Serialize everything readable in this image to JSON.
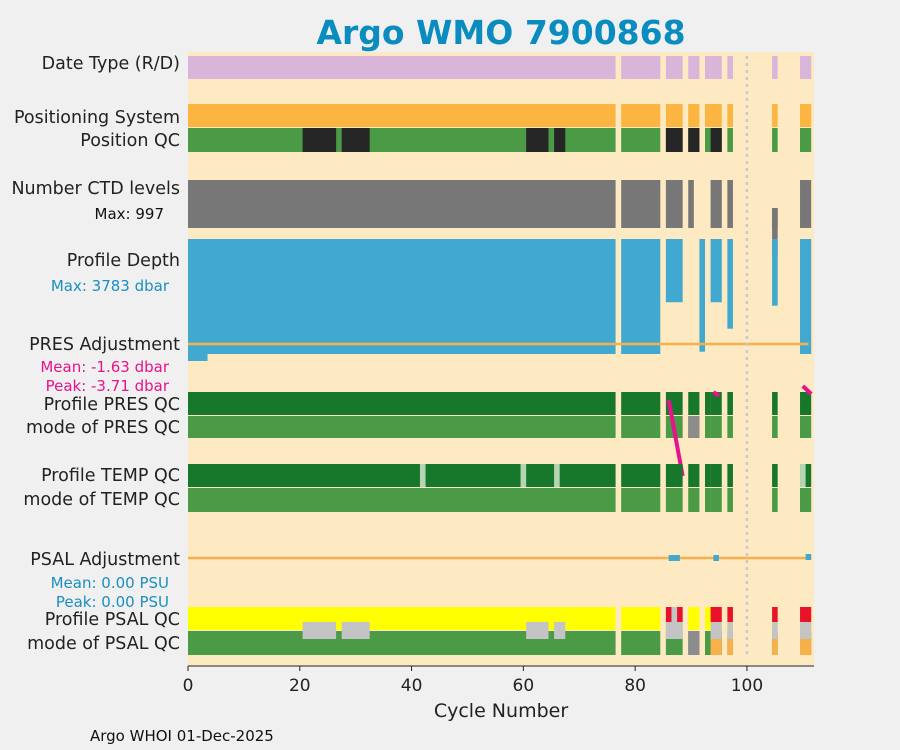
{
  "chart_data": {
    "type": "timeline",
    "title": "Argo WMO 7900868",
    "xlabel": "Cycle Number",
    "xlim": [
      0,
      112
    ],
    "xticks": [
      0,
      20,
      40,
      60,
      80,
      100
    ],
    "footer": "Argo WHOI 01-Dec-2025",
    "row_labels": {
      "date_type": "Date Type (R/D)",
      "positioning_system": "Positioning System",
      "position_qc": "Position QC",
      "n_ctd_levels": "Number CTD levels",
      "profile_depth": "Profile Depth",
      "pres_adjustment": "PRES Adjustment",
      "profile_pres_qc": "Profile PRES QC",
      "mode_pres_qc": "mode of PRES QC",
      "profile_temp_qc": "Profile TEMP QC",
      "mode_temp_qc": "mode of TEMP QC",
      "psal_adjustment": "PSAL Adjustment",
      "profile_psal_qc": "Profile PSAL QC",
      "mode_psal_qc": "mode of PSAL QC"
    },
    "annotations": {
      "ctd_max": "Max: 997",
      "depth_max": "Max: 3783 dbar",
      "pres_mean": "Mean: -1.63 dbar",
      "pres_peak": "Peak: -3.71 dbar",
      "psal_mean": "Mean: 0.00 PSU",
      "psal_peak": "Peak: 0.00 PSU"
    },
    "colors": {
      "background": "#fde9c2",
      "date_type": "#d9b6d9",
      "positioning": "#fbb540",
      "qc_good": "#4a9a46",
      "qc_profile_good": "#17772b",
      "qc_bad": "#262626",
      "ctd": "#777777",
      "depth": "#41a9d0",
      "adjustment_line": "#f7b04a",
      "pink": "#e8128c",
      "grey": "#c4c4c4",
      "mode_grey": "#8c8c8c",
      "yellow": "#ffff00",
      "red": "#e8132a",
      "orange": "#f7b04a",
      "light_green": "#b5d6b0",
      "title": "#0a8cbe"
    },
    "cycles": [
      {
        "start": 0,
        "end": 76.5,
        "present": true
      },
      {
        "start": 77.5,
        "end": 84.5,
        "present": true
      },
      {
        "start": 85.5,
        "end": 88.5,
        "present": true
      },
      {
        "start": 89.5,
        "end": 91.5,
        "present": true
      },
      {
        "start": 92.5,
        "end": 93.5,
        "present": true
      },
      {
        "start": 93.5,
        "end": 95.5,
        "present": true
      },
      {
        "start": 96.5,
        "end": 97.5,
        "present": true
      },
      {
        "start": 104.5,
        "end": 105.5,
        "present": true
      },
      {
        "start": 109.5,
        "end": 111.5,
        "present": true
      }
    ],
    "dotted_cycle": 100,
    "position_qc_bad": [
      [
        20.5,
        26.5
      ],
      [
        27.5,
        32.5
      ],
      [
        60.5,
        64.5
      ],
      [
        65.5,
        67.5
      ],
      [
        85.5,
        88.5
      ],
      [
        89.5,
        91.5
      ],
      [
        93.5,
        95.5
      ]
    ],
    "ctd_gaps": [
      [
        88.5,
        91.5
      ],
      [
        93.5,
        93.6
      ],
      [
        95.5,
        96.5
      ]
    ],
    "ctd_short": [
      [
        104.5,
        105.5
      ]
    ],
    "depth_segments": [
      {
        "start": 0,
        "end": 76.5,
        "depth_frac": 1.0
      },
      {
        "start": 77.5,
        "end": 84.5,
        "depth_frac": 1.0
      },
      {
        "start": 85.5,
        "end": 88.5,
        "depth_frac": 0.55
      },
      {
        "start": 91.5,
        "end": 92.5,
        "depth_frac": 0.98
      },
      {
        "start": 93.5,
        "end": 95.5,
        "depth_frac": 0.55
      },
      {
        "start": 96.5,
        "end": 97.5,
        "depth_frac": 0.78
      },
      {
        "start": 104.5,
        "end": 105.5,
        "depth_frac": 0.58
      },
      {
        "start": 109.5,
        "end": 111.5,
        "depth_frac": 1.0
      }
    ],
    "temp_light": [
      [
        41.5,
        42.5
      ],
      [
        59.5,
        60.5
      ],
      [
        65.5,
        66.5
      ],
      [
        109.5,
        110.5
      ]
    ],
    "pres_mode_grey": [
      [
        89.5,
        91.5
      ]
    ],
    "pres_pink_line": [
      [
        86,
        88
      ],
      [
        87.5,
        94
      ]
    ],
    "psal_qc_red": [
      [
        85.5,
        86.5
      ],
      [
        87.5,
        88.5
      ],
      [
        93.5,
        95.5
      ],
      [
        96.5,
        97.5
      ],
      [
        104.5,
        105.5
      ],
      [
        109.5,
        111.5
      ]
    ],
    "psal_mode_grey": [
      [
        20.5,
        26.5
      ],
      [
        27.5,
        32.5
      ],
      [
        60.5,
        64.5
      ],
      [
        65.5,
        67.5
      ],
      [
        85.5,
        88.5
      ],
      [
        93.5,
        95.5
      ],
      [
        96.5,
        97.5
      ],
      [
        104.5,
        105.5
      ],
      [
        109.5,
        111.5
      ]
    ]
  }
}
